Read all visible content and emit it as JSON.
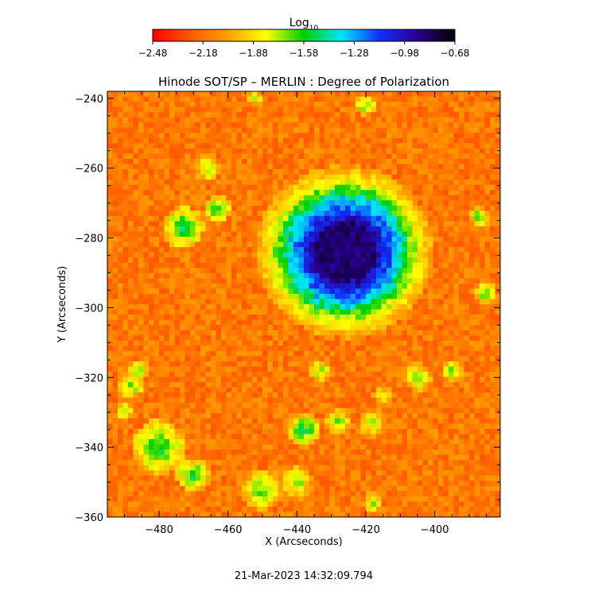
{
  "chart_data": {
    "type": "heatmap",
    "title": "Hinode SOT/SP – MERLIN : Degree of Polarization",
    "xlabel": "X (Arcseconds)",
    "ylabel": "Y (Arcseconds)",
    "xlim": [
      -495,
      -381
    ],
    "ylim": [
      -360,
      -238
    ],
    "x_ticks": [
      -480,
      -460,
      -440,
      -420,
      -400
    ],
    "y_ticks": [
      -240,
      -260,
      -280,
      -300,
      -320,
      -340,
      -360
    ],
    "x_tick_labels": [
      "−480",
      "−460",
      "−440",
      "−420",
      "−400"
    ],
    "y_tick_labels": [
      "−240",
      "−260",
      "−280",
      "−300",
      "−320",
      "−340",
      "−360"
    ],
    "colorbar": {
      "label_base": "Log",
      "label_sub": "10",
      "range": [
        -2.48,
        -0.68
      ],
      "ticks": [
        -2.48,
        -2.18,
        -1.88,
        -1.58,
        -1.28,
        -0.98,
        -0.68
      ],
      "tick_labels": [
        "−2.48",
        "−2.18",
        "−1.88",
        "−1.58",
        "−1.28",
        "−0.98",
        "−0.68"
      ],
      "colormap": [
        "#ff0000",
        "#ff5a00",
        "#ffa000",
        "#ffff00",
        "#00d000",
        "#00e5ff",
        "#1030ff",
        "#2a0090",
        "#000000"
      ]
    },
    "features": {
      "sunspot_umbra_center": [
        -426,
        -284
      ],
      "sunspot_umbra_radius": 9,
      "sunspot_penumbra_radius": 16
    }
  },
  "footer": {
    "timestamp": "21-Mar-2023 14:32:09.794"
  }
}
